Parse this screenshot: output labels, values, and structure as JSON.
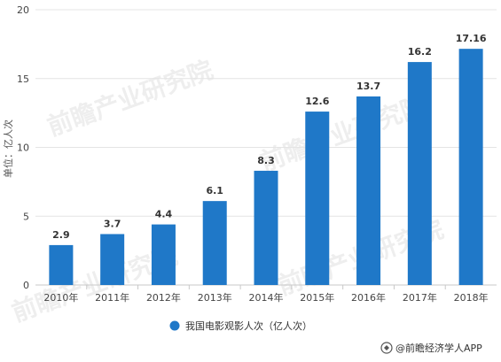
{
  "chart_data": {
    "type": "bar",
    "categories": [
      "2010年",
      "2011年",
      "2012年",
      "2013年",
      "2014年",
      "2015年",
      "2016年",
      "2017年",
      "2018年"
    ],
    "series": [
      {
        "name": "我国电影观影人次（亿人次）",
        "values": [
          2.9,
          3.7,
          4.4,
          6.1,
          8.3,
          12.6,
          13.7,
          16.2,
          17.16
        ],
        "labels": [
          "2.9",
          "3.7",
          "4.4",
          "6.1",
          "8.3",
          "12.6",
          "13.7",
          "16.2",
          "17.16"
        ]
      }
    ],
    "ylabel": "单位：亿人次",
    "ylim": [
      0,
      20
    ],
    "yticks": [
      0,
      5,
      10,
      15,
      20
    ],
    "grid": true,
    "legend_position": "bottom-center"
  },
  "colors": {
    "bar": "#1f78c8",
    "legend_marker": "#1f78c8"
  },
  "source": {
    "icon": "source-logo-icon",
    "text": "@前瞻经济学人APP"
  },
  "watermark": {
    "text": "前瞻产业研究院"
  }
}
